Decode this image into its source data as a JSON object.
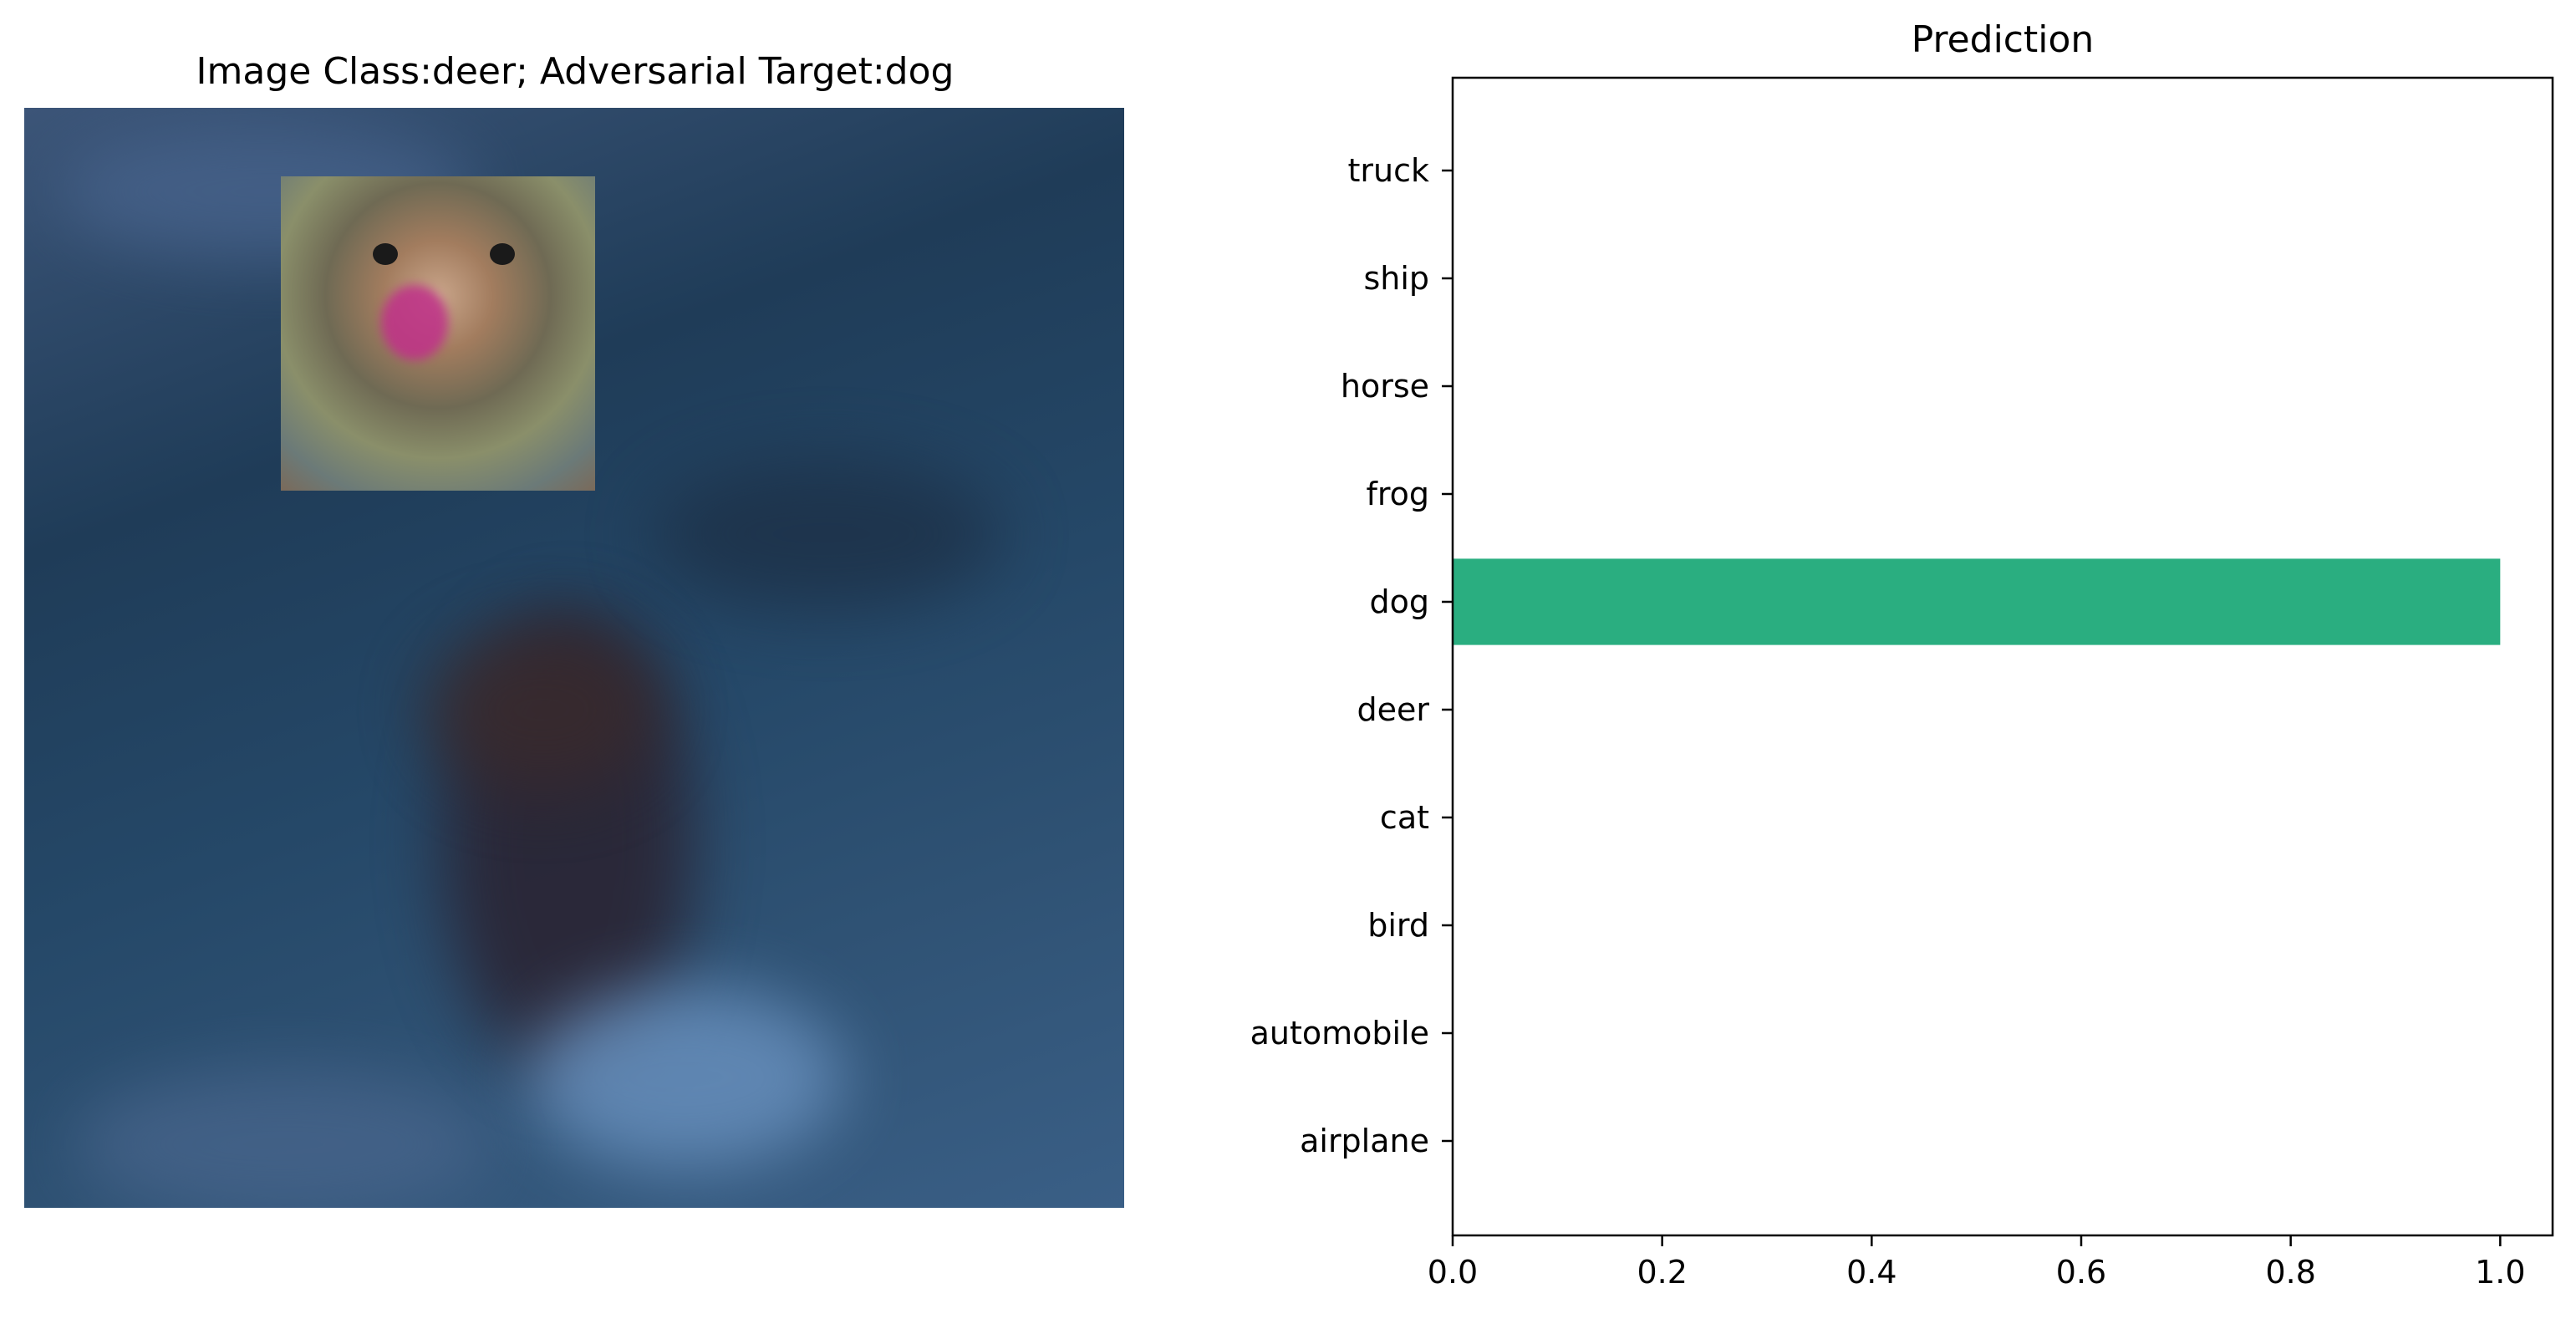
{
  "left_panel": {
    "title": "Image Class:deer; Adversarial Target:dog",
    "image_description_icon": "deer-photo-with-adversarial-dog-patch"
  },
  "chart_data": {
    "type": "bar",
    "orientation": "horizontal",
    "title": "Prediction",
    "xlabel": "",
    "ylabel": "",
    "categories": [
      "airplane",
      "automobile",
      "bird",
      "cat",
      "deer",
      "dog",
      "frog",
      "horse",
      "ship",
      "truck"
    ],
    "values": [
      0,
      0,
      0,
      0,
      0,
      1.0,
      0,
      0,
      0,
      0
    ],
    "xlim": [
      0,
      1.05
    ],
    "xticks": [
      0.0,
      0.2,
      0.4,
      0.6,
      0.8,
      1.0
    ],
    "xtick_labels": [
      "0.0",
      "0.2",
      "0.4",
      "0.6",
      "0.8",
      "1.0"
    ],
    "bar_color": "#2aae80",
    "grid": false
  }
}
